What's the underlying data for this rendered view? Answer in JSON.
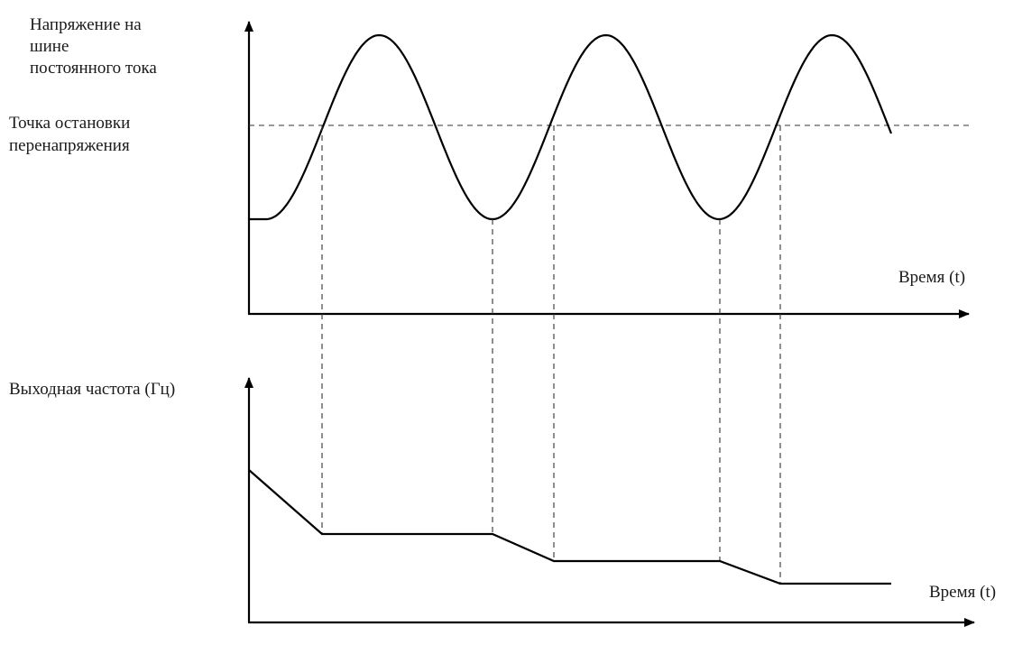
{
  "top_plot": {
    "y_label_lines": [
      "Напряжение на",
      "шине",
      "постоянного тока"
    ],
    "threshold_label_lines": [
      "Точка остановки",
      "перенапряжения"
    ],
    "x_label": "Время (t)"
  },
  "bottom_plot": {
    "y_label": "Выходная частота (Гц)",
    "x_label": "Время (t)"
  }
}
